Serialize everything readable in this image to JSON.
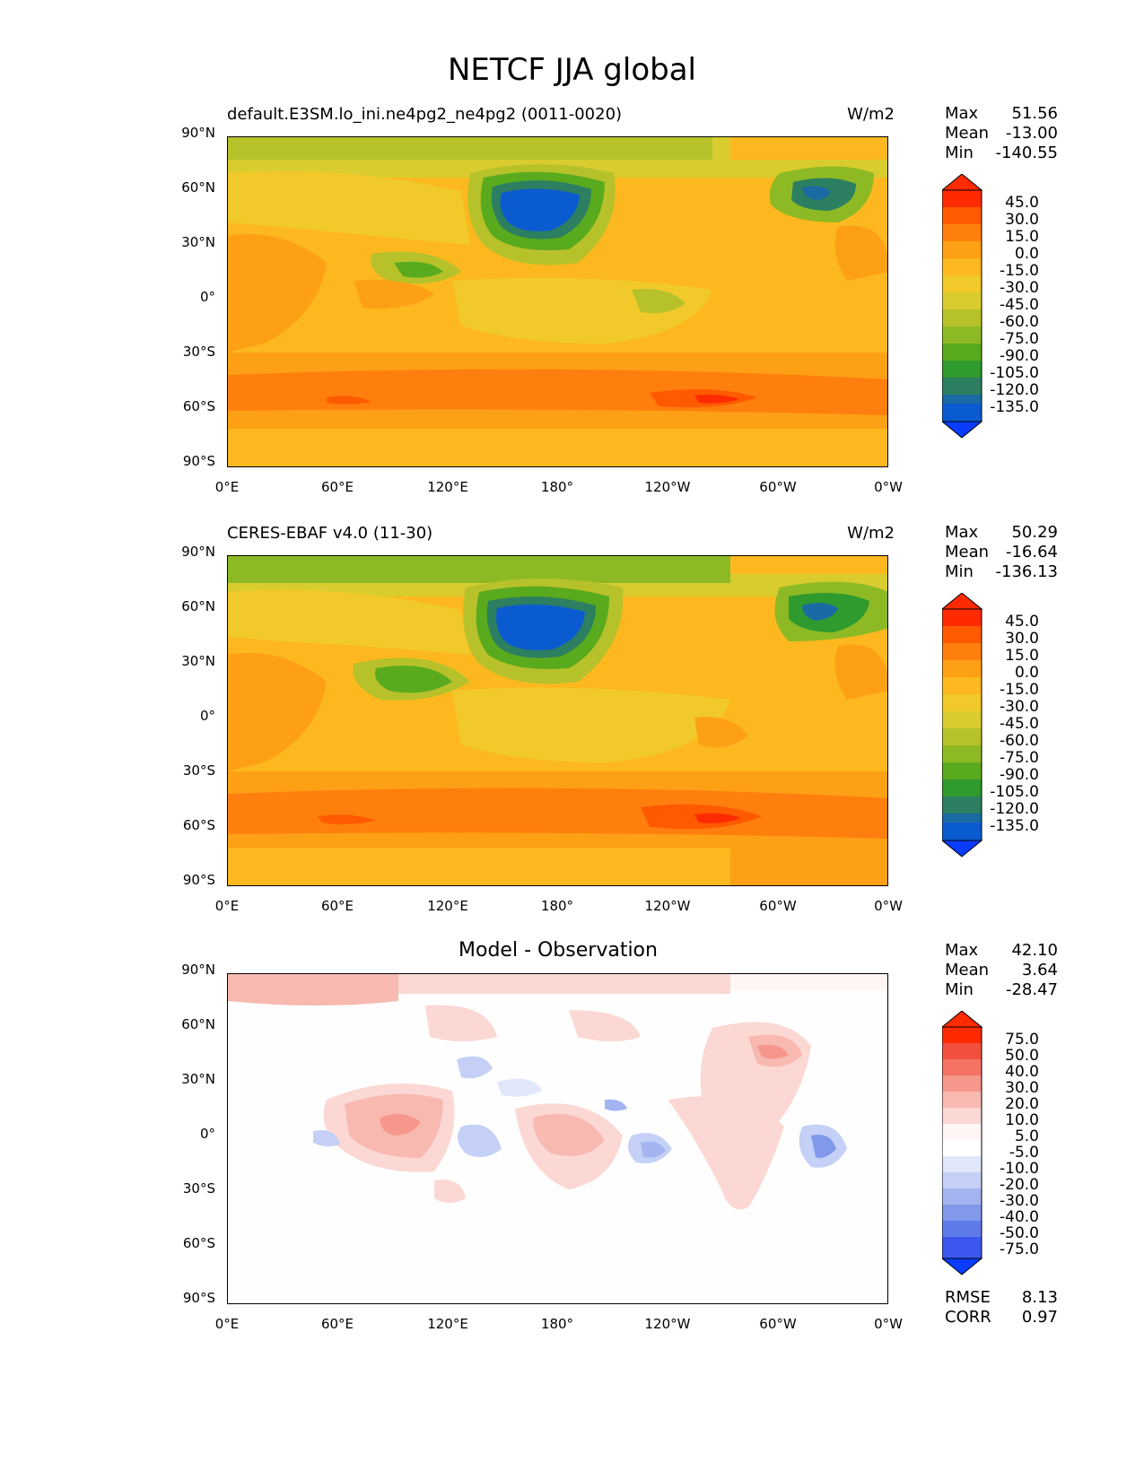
{
  "figure_title": "NETCF JJA global",
  "x_ticks": [
    "0°E",
    "60°E",
    "120°E",
    "180°",
    "120°W",
    "60°W",
    "0°W"
  ],
  "y_ticks": [
    "90°N",
    "60°N",
    "30°N",
    "0°",
    "30°S",
    "60°S",
    "90°S"
  ],
  "panels": [
    {
      "title_left": "default.E3SM.lo_ini.ne4pg2_ne4pg2 (0011-0020)",
      "units": "W/m2",
      "stats": {
        "max_label": "Max",
        "max": "51.56",
        "mean_label": "Mean",
        "mean": "-13.00",
        "min_label": "Min",
        "min": "-140.55"
      },
      "colorbar_ticks": [
        "45.0",
        "30.0",
        "15.0",
        "0.0",
        "-15.0",
        "-30.0",
        "-45.0",
        "-60.0",
        "-75.0",
        "-90.0",
        "-105.0",
        "-120.0",
        "-135.0"
      ]
    },
    {
      "title_left": "CERES-EBAF v4.0 (11-30)",
      "units": "W/m2",
      "stats": {
        "max_label": "Max",
        "max": "50.29",
        "mean_label": "Mean",
        "mean": "-16.64",
        "min_label": "Min",
        "min": "-136.13"
      },
      "colorbar_ticks": [
        "45.0",
        "30.0",
        "15.0",
        "0.0",
        "-15.0",
        "-30.0",
        "-45.0",
        "-60.0",
        "-75.0",
        "-90.0",
        "-105.0",
        "-120.0",
        "-135.0"
      ]
    },
    {
      "title_center": "Model - Observation",
      "stats": {
        "max_label": "Max",
        "max": "42.10",
        "mean_label": "Mean",
        "mean": "3.64",
        "min_label": "Min",
        "min": "-28.47"
      },
      "colorbar_ticks": [
        "75.0",
        "50.0",
        "40.0",
        "30.0",
        "20.0",
        "10.0",
        "5.0",
        "-5.0",
        "-10.0",
        "-20.0",
        "-30.0",
        "-40.0",
        "-50.0",
        "-75.0"
      ],
      "metrics": {
        "rmse_label": "RMSE",
        "rmse": "8.13",
        "corr_label": "CORR",
        "corr": "0.97"
      }
    }
  ],
  "colors": {
    "main_scale": [
      "#ff2a00",
      "#ff5a00",
      "#ff7f0e",
      "#fea015",
      "#fcb81e",
      "#f2c92a",
      "#d9cc2e",
      "#b7c22a",
      "#8dba24",
      "#5aaa1e",
      "#2f9a2e",
      "#2c7f60",
      "#1a6aa4",
      "#0b5bd0",
      "#0a3cff"
    ],
    "diff_scale": [
      "#ff2a00",
      "#f2503e",
      "#f47364",
      "#f6978c",
      "#f8b9b1",
      "#fbd8d3",
      "#fdf6f4",
      "#ffffff",
      "#e1e7fb",
      "#c4d0f6",
      "#a3b4f0",
      "#8198eb",
      "#5f7be9",
      "#3b57ee",
      "#0a3cff"
    ]
  }
}
